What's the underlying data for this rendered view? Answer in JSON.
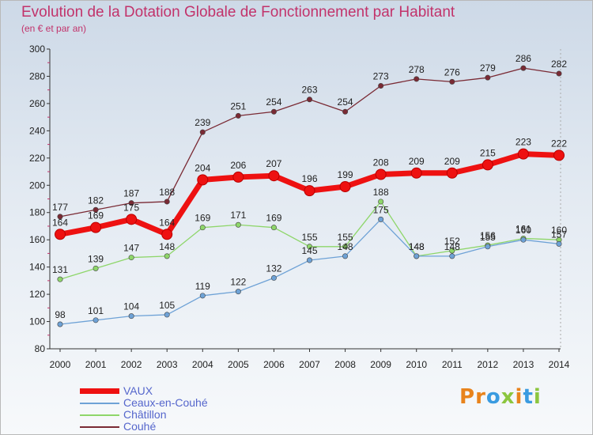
{
  "header": {
    "title": "Evolution de la Dotation Globale de Fonctionnement par Habitant",
    "subtitle": "(en € et par an)"
  },
  "logo": {
    "letters": [
      {
        "char": "P",
        "color": "#e8831c"
      },
      {
        "char": "r",
        "color": "#e8831c"
      },
      {
        "char": "o",
        "color": "#3a9be0"
      },
      {
        "char": "x",
        "color": "#8cc63f"
      },
      {
        "char": "i",
        "color": "#e8831c"
      },
      {
        "char": "t",
        "color": "#3a9be0"
      },
      {
        "char": "i",
        "color": "#8cc63f"
      }
    ]
  },
  "chart_data": {
    "type": "line",
    "title": "Evolution de la Dotation Globale de Fonctionnement par Habitant",
    "subtitle": "(en € et par an)",
    "x": [
      "2000",
      "2001",
      "2002",
      "2003",
      "2004",
      "2005",
      "2006",
      "2007",
      "2008",
      "2009",
      "2010",
      "2011",
      "2012",
      "2013",
      "2014"
    ],
    "ylim": [
      80,
      300
    ],
    "yticks": [
      80,
      100,
      120,
      140,
      160,
      180,
      200,
      220,
      240,
      260,
      280,
      300
    ],
    "grid": false,
    "legend_position": "bottom-left",
    "series": [
      {
        "name": "VAUX",
        "color": "#ee1111",
        "values": [
          164,
          169,
          175,
          164,
          204,
          206,
          207,
          196,
          199,
          208,
          209,
          209,
          215,
          223,
          222
        ]
      },
      {
        "name": "Ceaux-en-Couhé",
        "color": "#6ea2d6",
        "values": [
          98,
          101,
          104,
          105,
          119,
          122,
          132,
          145,
          148,
          175,
          148,
          148,
          155,
          160,
          157
        ]
      },
      {
        "name": "Châtillon",
        "color": "#8ed66a",
        "values": [
          131,
          139,
          147,
          148,
          169,
          171,
          169,
          155,
          155,
          188,
          148,
          152,
          156,
          161,
          160
        ]
      },
      {
        "name": "Couhé",
        "color": "#7a2a34",
        "values": [
          177,
          182,
          187,
          188,
          239,
          251,
          254,
          263,
          254,
          273,
          278,
          276,
          279,
          286,
          282
        ]
      }
    ]
  }
}
